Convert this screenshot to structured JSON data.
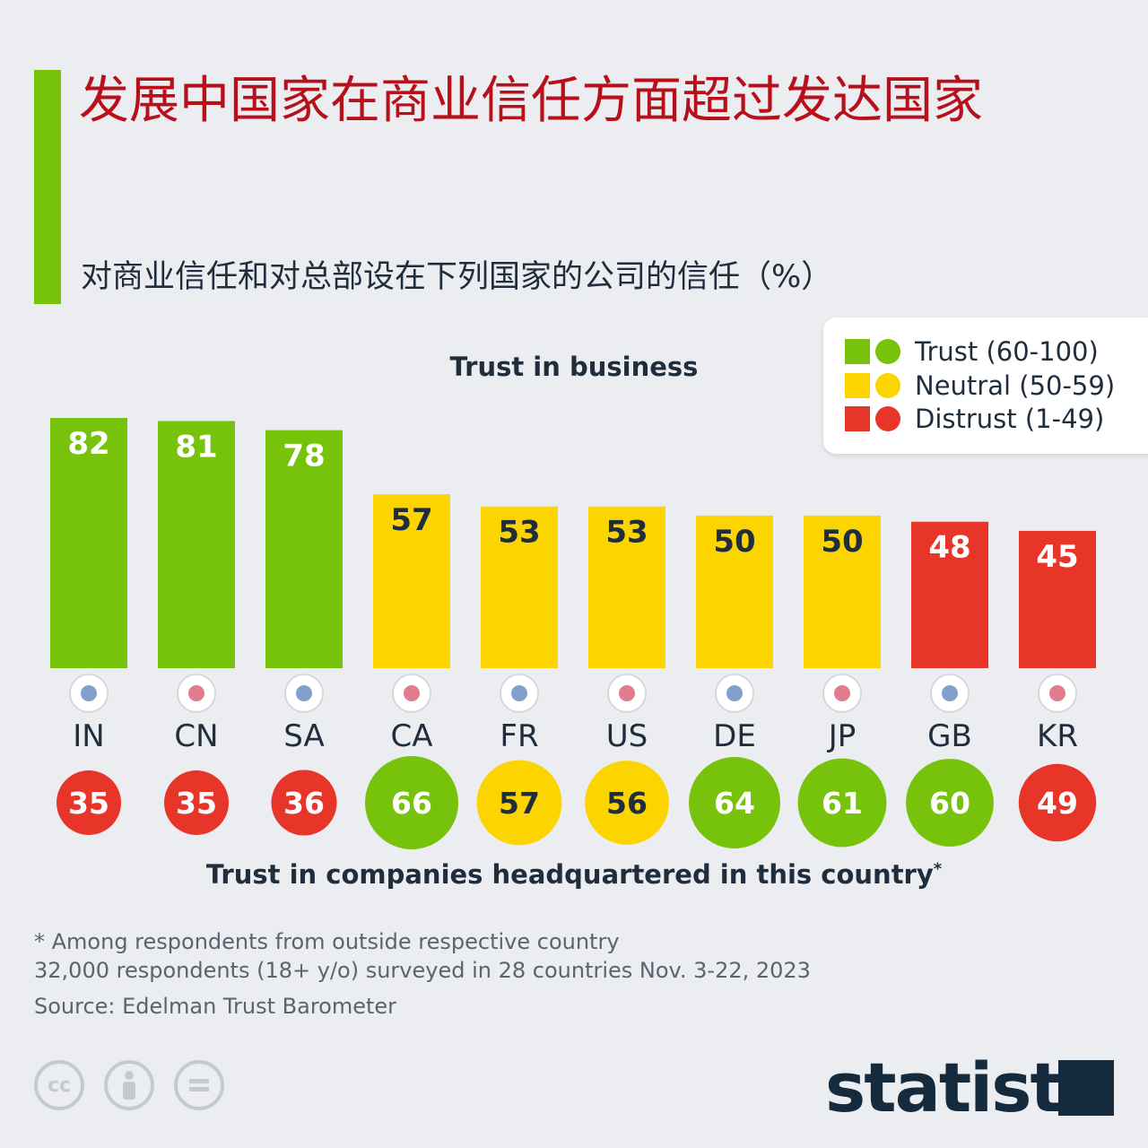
{
  "title": "发展中国家在商业信任方面超过发达国家",
  "subtitle": "对商业信任和对总部设在下列国家的公司的信任（%）",
  "legend": [
    {
      "label": "Trust (60-100)",
      "color": "#77c20a"
    },
    {
      "label": "Neutral (50-59)",
      "color": "#fcd400"
    },
    {
      "label": "Distrust (1-49)",
      "color": "#e8352a"
    }
  ],
  "chart_data": {
    "type": "bar",
    "title": "Trust in business",
    "categories": [
      "IN",
      "CN",
      "SA",
      "CA",
      "FR",
      "US",
      "DE",
      "JP",
      "GB",
      "KR"
    ],
    "series": [
      {
        "name": "Trust in business",
        "values": [
          82,
          81,
          78,
          57,
          53,
          53,
          50,
          50,
          48,
          45
        ]
      },
      {
        "name": "Trust in companies headquartered in this country",
        "values": [
          35,
          35,
          36,
          66,
          57,
          56,
          64,
          61,
          60,
          49
        ]
      }
    ],
    "bottom_title": "Trust in companies headquartered in this country",
    "bottom_title_mark": "*",
    "ylim": [
      0,
      100
    ]
  },
  "colors": {
    "trust": "#77c20a",
    "neutral": "#fcd400",
    "distrust": "#e8352a",
    "dark_text": "#1f2d3d",
    "light_text": "#ffffff"
  },
  "notes": {
    "footnote": "* Among respondents from outside respective country",
    "survey": "32,000 respondents (18+ y/o) surveyed in 28 countries Nov. 3-22, 2023",
    "source": "Source: Edelman Trust Barometer"
  },
  "license_icons": [
    "cc-icon",
    "attribution-icon",
    "no-derivatives-icon"
  ],
  "brand": "statista"
}
